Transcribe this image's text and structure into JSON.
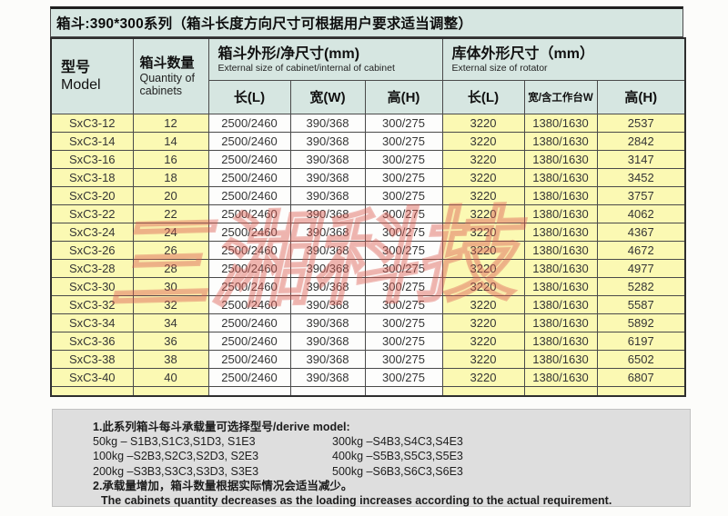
{
  "title": "箱斗:390*300系列（箱斗长度方向尺寸可根据用户要求适当调整）",
  "table": {
    "header": {
      "model": {
        "zh": "型号",
        "en": "Model"
      },
      "quantity": {
        "zh": "箱斗数量",
        "en": "Quantity of cabinets"
      },
      "cabinet": {
        "zh": "箱斗外形/净尺寸(mm)",
        "en": "External size of cabinet/internal of cabinet",
        "cols": [
          "长(L)",
          "宽(W)",
          "高(H)"
        ]
      },
      "rotator": {
        "zh": "库体外形尺寸（mm）",
        "en": "External size of rotator",
        "cols": [
          "长(L)",
          "宽/含工作台W",
          "高(H)"
        ]
      }
    },
    "rows": [
      [
        "SxC3-12",
        "12",
        "2500/2460",
        "390/368",
        "300/275",
        "3220",
        "1380/1630",
        "2537"
      ],
      [
        "SxC3-14",
        "14",
        "2500/2460",
        "390/368",
        "300/275",
        "3220",
        "1380/1630",
        "2842"
      ],
      [
        "SxC3-16",
        "16",
        "2500/2460",
        "390/368",
        "300/275",
        "3220",
        "1380/1630",
        "3147"
      ],
      [
        "SxC3-18",
        "18",
        "2500/2460",
        "390/368",
        "300/275",
        "3220",
        "1380/1630",
        "3452"
      ],
      [
        "SxC3-20",
        "20",
        "2500/2460",
        "390/368",
        "300/275",
        "3220",
        "1380/1630",
        "3757"
      ],
      [
        "SxC3-22",
        "22",
        "2500/2460",
        "390/368",
        "300/275",
        "3220",
        "1380/1630",
        "4062"
      ],
      [
        "SxC3-24",
        "24",
        "2500/2460",
        "390/368",
        "300/275",
        "3220",
        "1380/1630",
        "4367"
      ],
      [
        "SxC3-26",
        "26",
        "2500/2460",
        "390/368",
        "300/275",
        "3220",
        "1380/1630",
        "4672"
      ],
      [
        "SxC3-28",
        "28",
        "2500/2460",
        "390/368",
        "300/275",
        "3220",
        "1380/1630",
        "4977"
      ],
      [
        "SxC3-30",
        "30",
        "2500/2460",
        "390/368",
        "300/275",
        "3220",
        "1380/1630",
        "5282"
      ],
      [
        "SxC3-32",
        "32",
        "2500/2460",
        "390/368",
        "300/275",
        "3220",
        "1380/1630",
        "5587"
      ],
      [
        "SxC3-34",
        "34",
        "2500/2460",
        "390/368",
        "300/275",
        "3220",
        "1380/1630",
        "5892"
      ],
      [
        "SxC3-36",
        "36",
        "2500/2460",
        "390/368",
        "300/275",
        "3220",
        "1380/1630",
        "6197"
      ],
      [
        "SxC3-38",
        "38",
        "2500/2460",
        "390/368",
        "300/275",
        "3220",
        "1380/1630",
        "6502"
      ],
      [
        "SxC3-40",
        "40",
        "2500/2460",
        "390/368",
        "300/275",
        "3220",
        "1380/1630",
        "6807"
      ]
    ],
    "yellow_columns": [
      0,
      1,
      5,
      6,
      7
    ],
    "white_columns": [
      2,
      3,
      4
    ]
  },
  "notes": {
    "note1": "1.此系列箱斗每斗承载量可选择型号/derive model:",
    "load_left": [
      "50kg – S1B3,S1C3,S1D3, S1E3",
      "100kg –S2B3,S2C3,S2D3, S2E3",
      "200kg –S3B3,S3C3,S3D3, S3E3"
    ],
    "load_right": [
      "300kg –S4B3,S4C3,S4E3",
      "400kg –S5B3,S5C3,S5E3",
      "500kg –S6B3,S6C3,S6E3"
    ],
    "note2_zh": "2.承载量增加，箱斗数量根据实际情况会适当减少。",
    "note2_en": "The cabinets quantity decreases as the loading increases according to the actual requirement."
  },
  "watermark_text": "三湘科技",
  "colors": {
    "header_bg": "#d6e6e1",
    "yellow_cell_bg": "#fbf9b3",
    "white_cell_bg": "#fdfdfc",
    "notes_bg": "#dedede",
    "border": "#4a4a4a",
    "watermark_red": "#dd5c52"
  }
}
